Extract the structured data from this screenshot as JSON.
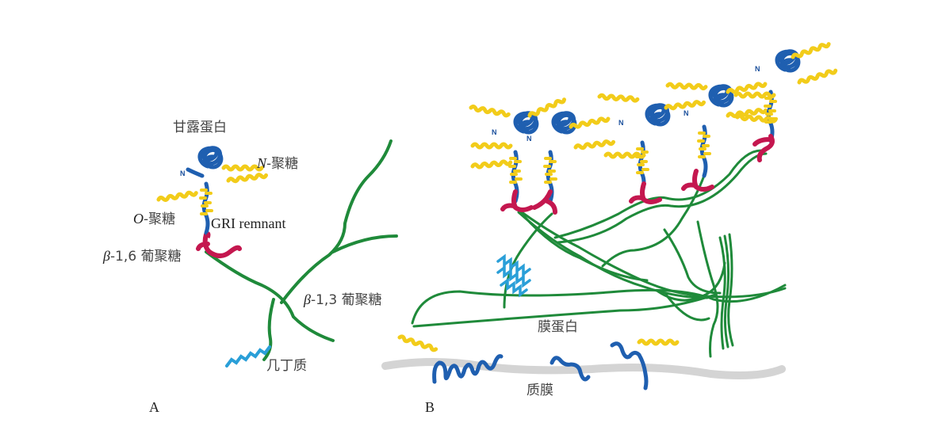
{
  "colors": {
    "protein": "#1f5fb0",
    "glycan": "#f2cc1a",
    "glucan16": "#c4174f",
    "glucan13": "#1f8a3a",
    "chitin": "#2a9fd8",
    "membrane": "#d4d4d4"
  },
  "panel_a": {
    "mannoprotein": "甘露蛋白",
    "n_glycan_italic": "N",
    "n_glycan_rest": "-聚糖",
    "o_glycan_italic": "O",
    "o_glycan_rest": "-聚糖",
    "gri": "GRI remnant",
    "beta16_italic": "β",
    "beta16_rest": "-1,6 葡聚糖",
    "beta13_italic": "β",
    "beta13_rest": "-1,3 葡聚糖",
    "chitin": "几丁质",
    "n_terminus": "N",
    "panel_label": "A"
  },
  "panel_b": {
    "membrane_protein": "膜蛋白",
    "plasma_membrane": "质膜",
    "n_terminus": "N",
    "panel_label": "B"
  }
}
